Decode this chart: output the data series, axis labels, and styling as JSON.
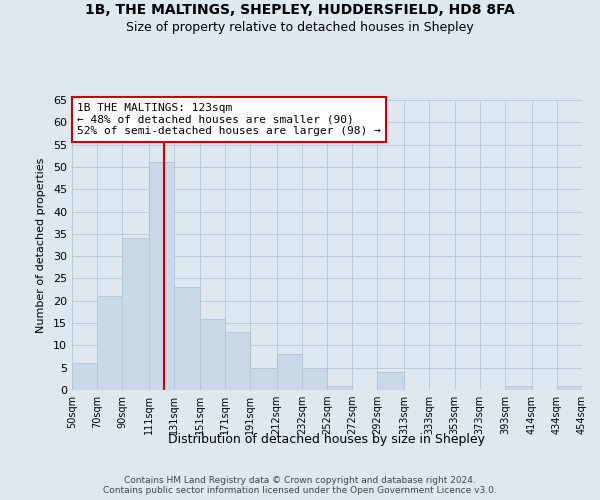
{
  "title_line1": "1B, THE MALTINGS, SHEPLEY, HUDDERSFIELD, HD8 8FA",
  "title_line2": "Size of property relative to detached houses in Shepley",
  "xlabel": "Distribution of detached houses by size in Shepley",
  "ylabel": "Number of detached properties",
  "bar_color": "#c8d8e8",
  "bar_edge_color": "#b0c4d8",
  "vline_color": "#cc0000",
  "vline_x": 123,
  "annotation_title": "1B THE MALTINGS: 123sqm",
  "annotation_line2": "← 48% of detached houses are smaller (90)",
  "annotation_line3": "52% of semi-detached houses are larger (98) →",
  "annotation_box_color": "#ffffff",
  "annotation_box_edge": "#cc0000",
  "bins": [
    50,
    70,
    90,
    111,
    131,
    151,
    171,
    191,
    212,
    232,
    252,
    272,
    292,
    313,
    333,
    353,
    373,
    393,
    414,
    434,
    454
  ],
  "counts": [
    6,
    21,
    34,
    51,
    23,
    16,
    13,
    5,
    8,
    5,
    1,
    0,
    4,
    0,
    0,
    0,
    0,
    1,
    0,
    1
  ],
  "ylim": [
    0,
    65
  ],
  "yticks": [
    0,
    5,
    10,
    15,
    20,
    25,
    30,
    35,
    40,
    45,
    50,
    55,
    60,
    65
  ],
  "tick_labels": [
    "50sqm",
    "70sqm",
    "90sqm",
    "111sqm",
    "131sqm",
    "151sqm",
    "171sqm",
    "191sqm",
    "212sqm",
    "232sqm",
    "252sqm",
    "272sqm",
    "292sqm",
    "313sqm",
    "333sqm",
    "353sqm",
    "373sqm",
    "393sqm",
    "414sqm",
    "434sqm",
    "454sqm"
  ],
  "footer_line1": "Contains HM Land Registry data © Crown copyright and database right 2024.",
  "footer_line2": "Contains public sector information licensed under the Open Government Licence v3.0.",
  "bg_color": "#dde8f0",
  "plot_bg_color": "#dde8f0",
  "grid_color": "#b8ccd8"
}
